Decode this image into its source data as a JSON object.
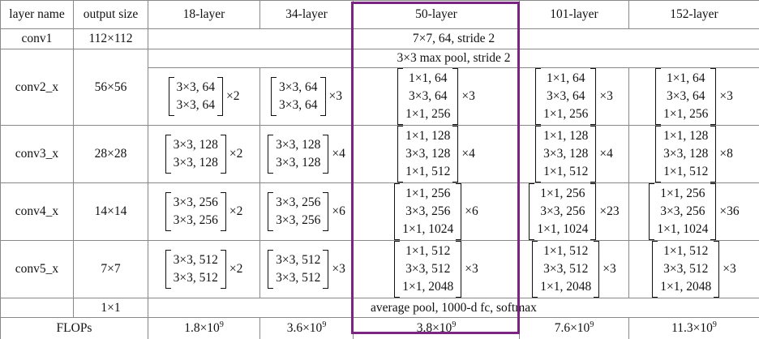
{
  "table": {
    "header": [
      "layer name",
      "output size",
      "18-layer",
      "34-layer",
      "50-layer",
      "101-layer",
      "152-layer"
    ],
    "conv1": {
      "name": "conv1",
      "output": "112×112",
      "spec": "7×7, 64, stride 2"
    },
    "stages": [
      {
        "name": "conv2_x",
        "output": "56×56",
        "pool": "3×3 max pool, stride 2",
        "blocks": [
          {
            "lines": [
              "3×3, 64",
              "3×3, 64"
            ],
            "mult": "×2"
          },
          {
            "lines": [
              "3×3, 64",
              "3×3, 64"
            ],
            "mult": "×3"
          },
          {
            "lines": [
              "1×1, 64",
              "3×3, 64",
              "1×1, 256"
            ],
            "mult": "×3"
          },
          {
            "lines": [
              "1×1, 64",
              "3×3, 64",
              "1×1, 256"
            ],
            "mult": "×3"
          },
          {
            "lines": [
              "1×1, 64",
              "3×3, 64",
              "1×1, 256"
            ],
            "mult": "×3"
          }
        ]
      },
      {
        "name": "conv3_x",
        "output": "28×28",
        "blocks": [
          {
            "lines": [
              "3×3, 128",
              "3×3, 128"
            ],
            "mult": "×2"
          },
          {
            "lines": [
              "3×3, 128",
              "3×3, 128"
            ],
            "mult": "×4"
          },
          {
            "lines": [
              "1×1, 128",
              "3×3, 128",
              "1×1, 512"
            ],
            "mult": "×4"
          },
          {
            "lines": [
              "1×1, 128",
              "3×3, 128",
              "1×1, 512"
            ],
            "mult": "×4"
          },
          {
            "lines": [
              "1×1, 128",
              "3×3, 128",
              "1×1, 512"
            ],
            "mult": "×8"
          }
        ]
      },
      {
        "name": "conv4_x",
        "output": "14×14",
        "blocks": [
          {
            "lines": [
              "3×3, 256",
              "3×3, 256"
            ],
            "mult": "×2"
          },
          {
            "lines": [
              "3×3, 256",
              "3×3, 256"
            ],
            "mult": "×6"
          },
          {
            "lines": [
              "1×1, 256",
              "3×3, 256",
              "1×1, 1024"
            ],
            "mult": "×6"
          },
          {
            "lines": [
              "1×1, 256",
              "3×3, 256",
              "1×1, 1024"
            ],
            "mult": "×23"
          },
          {
            "lines": [
              "1×1, 256",
              "3×3, 256",
              "1×1, 1024"
            ],
            "mult": "×36"
          }
        ]
      },
      {
        "name": "conv5_x",
        "output": "7×7",
        "blocks": [
          {
            "lines": [
              "3×3, 512",
              "3×3, 512"
            ],
            "mult": "×2"
          },
          {
            "lines": [
              "3×3, 512",
              "3×3, 512"
            ],
            "mult": "×3"
          },
          {
            "lines": [
              "1×1, 512",
              "3×3, 512",
              "1×1, 2048"
            ],
            "mult": "×3"
          },
          {
            "lines": [
              "1×1, 512",
              "3×3, 512",
              "1×1, 2048"
            ],
            "mult": "×3"
          },
          {
            "lines": [
              "1×1, 512",
              "3×3, 512",
              "1×1, 2048"
            ],
            "mult": "×3"
          }
        ]
      }
    ],
    "final": {
      "output": "1×1",
      "spec": "average pool, 1000-d fc, softmax"
    },
    "flops": {
      "label": "FLOPs",
      "values": [
        {
          "base": "1.8×10",
          "exp": "9"
        },
        {
          "base": "3.6×10",
          "exp": "9"
        },
        {
          "base": "3.8×10",
          "exp": "9"
        },
        {
          "base": "7.6×10",
          "exp": "9"
        },
        {
          "base": "11.3×10",
          "exp": "9"
        }
      ]
    }
  }
}
